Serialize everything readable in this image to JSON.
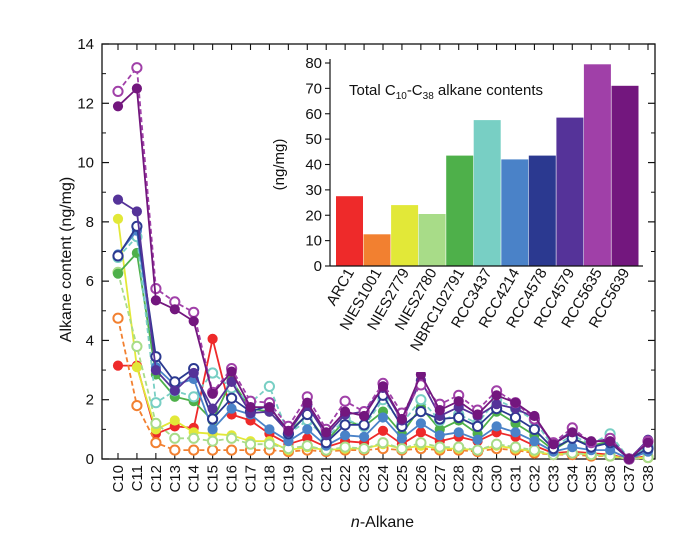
{
  "chart_data": [
    {
      "type": "line",
      "xlabel_italic": "n",
      "xlabel_rest": "-Alkane",
      "ylabel": "Alkane content (ng/mg)",
      "ylim": [
        0,
        14
      ],
      "yticks": [
        0,
        2,
        4,
        6,
        8,
        10,
        12,
        14
      ],
      "x": [
        "C10",
        "C11",
        "C12",
        "C13",
        "C14",
        "C15",
        "C16",
        "C17",
        "C18",
        "C19",
        "C20",
        "C21",
        "C22",
        "C23",
        "C24",
        "C25",
        "C26",
        "C27",
        "C28",
        "C29",
        "C30",
        "C31",
        "C32",
        "C33",
        "C34",
        "C35",
        "C36",
        "C37",
        "C38"
      ],
      "series": [
        {
          "color": "#EE2A2A",
          "marker": "filled",
          "dashed": false,
          "values": [
            3.15,
            3.15,
            0.85,
            1.1,
            1.05,
            4.05,
            1.5,
            1.3,
            0.85,
            0.5,
            0.7,
            0.4,
            0.6,
            0.55,
            0.95,
            0.5,
            0.9,
            0.6,
            0.75,
            0.6,
            0.9,
            0.75,
            0.45,
            0.2,
            0.25,
            0.2,
            0.15,
            0.0,
            0.1
          ]
        },
        {
          "color": "#F28030",
          "marker": "open",
          "dashed": true,
          "values": [
            4.75,
            1.8,
            0.55,
            0.3,
            0.3,
            0.3,
            0.3,
            0.3,
            0.3,
            0.25,
            0.3,
            0.25,
            0.3,
            0.3,
            0.35,
            0.3,
            0.35,
            0.3,
            0.3,
            0.25,
            0.35,
            0.3,
            0.2,
            0.15,
            0.15,
            0.1,
            0.1,
            0.0,
            0.05
          ]
        },
        {
          "color": "#E2E838",
          "marker": "filled",
          "dashed": false,
          "values": [
            8.1,
            3.1,
            1.0,
            1.3,
            0.9,
            0.85,
            0.8,
            0.6,
            0.6,
            0.3,
            0.4,
            0.3,
            0.35,
            0.35,
            0.5,
            0.35,
            0.45,
            0.35,
            0.35,
            0.3,
            0.45,
            0.35,
            0.25,
            0.15,
            0.2,
            0.15,
            0.1,
            0.0,
            0.05
          ]
        },
        {
          "color": "#A8DC88",
          "marker": "open",
          "dashed": true,
          "values": [
            6.3,
            3.8,
            1.2,
            0.7,
            0.7,
            0.6,
            0.7,
            0.5,
            0.5,
            0.35,
            0.45,
            0.3,
            0.4,
            0.35,
            0.55,
            0.35,
            0.55,
            0.4,
            0.4,
            0.3,
            0.5,
            0.4,
            0.3,
            0.15,
            0.2,
            0.15,
            0.1,
            0.0,
            0.05
          ]
        },
        {
          "color": "#4EB04A",
          "marker": "filled",
          "dashed": false,
          "values": [
            6.25,
            6.95,
            2.85,
            2.1,
            1.95,
            1.3,
            2.65,
            1.7,
            1.6,
            0.9,
            1.5,
            0.6,
            1.3,
            1.1,
            1.6,
            0.85,
            1.75,
            1.0,
            1.3,
            0.85,
            1.6,
            1.2,
            0.8,
            0.3,
            0.7,
            0.45,
            0.6,
            0.0,
            0.4
          ]
        },
        {
          "color": "#78CFC4",
          "marker": "open",
          "dashed": true,
          "values": [
            6.8,
            7.5,
            1.9,
            2.3,
            2.1,
            2.9,
            2.4,
            1.9,
            2.45,
            0.85,
            1.3,
            0.7,
            1.35,
            1.1,
            2.0,
            1.2,
            2.0,
            1.3,
            1.5,
            1.2,
            2.0,
            1.7,
            1.3,
            0.4,
            0.8,
            0.5,
            0.85,
            0.0,
            0.45
          ]
        },
        {
          "color": "#4A82C8",
          "marker": "filled",
          "dashed": false,
          "values": [
            6.9,
            7.7,
            3.1,
            2.5,
            2.7,
            1.0,
            1.7,
            1.5,
            1.0,
            0.6,
            1.0,
            0.45,
            0.8,
            0.75,
            1.4,
            0.7,
            1.2,
            0.8,
            0.9,
            0.65,
            1.1,
            0.9,
            0.6,
            0.25,
            0.4,
            0.3,
            0.3,
            0.0,
            0.25
          ]
        },
        {
          "color": "#2B3990",
          "marker": "open",
          "dashed": false,
          "values": [
            6.85,
            7.85,
            3.45,
            2.6,
            3.05,
            1.35,
            2.05,
            1.6,
            1.8,
            0.85,
            1.5,
            0.55,
            1.15,
            1.15,
            2.15,
            1.1,
            1.6,
            1.35,
            1.4,
            1.1,
            1.7,
            1.4,
            1.0,
            0.35,
            0.7,
            0.4,
            0.55,
            0.0,
            0.35
          ]
        },
        {
          "color": "#553399",
          "marker": "filled",
          "dashed": false,
          "values": [
            8.75,
            8.35,
            3.0,
            2.3,
            2.9,
            1.7,
            2.6,
            1.55,
            1.6,
            0.9,
            1.8,
            0.8,
            1.5,
            1.6,
            2.4,
            1.3,
            2.65,
            1.45,
            1.75,
            1.45,
            1.85,
            1.7,
            1.4,
            0.5,
            0.95,
            0.55,
            0.7,
            0.0,
            0.65
          ]
        },
        {
          "color": "#A040A8",
          "marker": "open",
          "dashed": true,
          "values": [
            12.4,
            13.2,
            5.75,
            5.3,
            4.95,
            2.25,
            3.05,
            1.95,
            1.9,
            1.1,
            2.1,
            1.0,
            1.95,
            1.6,
            2.55,
            1.55,
            2.5,
            1.85,
            2.15,
            1.65,
            2.3,
            1.9,
            1.35,
            0.55,
            1.05,
            0.55,
            0.7,
            0.0,
            0.6
          ]
        },
        {
          "color": "#73177E",
          "marker": "filled",
          "dashed": false,
          "values": [
            11.9,
            12.5,
            5.35,
            5.05,
            4.65,
            2.2,
            2.95,
            1.75,
            1.75,
            0.95,
            1.9,
            0.9,
            1.6,
            1.45,
            2.45,
            1.35,
            2.85,
            1.65,
            1.95,
            1.5,
            2.15,
            1.9,
            1.45,
            0.5,
            0.9,
            0.6,
            0.6,
            0.0,
            0.55
          ]
        }
      ]
    },
    {
      "type": "bar",
      "title_prefix": "Total C",
      "title_sub1": "10",
      "title_mid": "-C",
      "title_sub2": "38",
      "title_suffix": " alkane contents",
      "ylabel": "(ng/mg)",
      "ylim": [
        0,
        80
      ],
      "yticks": [
        0,
        10,
        20,
        30,
        40,
        50,
        60,
        70,
        80
      ],
      "categories": [
        "ARC1",
        "NIES1001",
        "NIES2779",
        "NIES2780",
        "NBRC102791",
        "RCC3437",
        "RCC4214",
        "RCC4578",
        "RCC4579",
        "RCC5635",
        "RCC5639"
      ],
      "values": [
        27.5,
        12.5,
        24.0,
        20.5,
        43.5,
        57.5,
        42.0,
        43.5,
        58.5,
        79.5,
        71.0
      ],
      "colors": [
        "#EE2A2A",
        "#F28030",
        "#E2E838",
        "#A8DC88",
        "#4EB04A",
        "#78CFC4",
        "#4A82C8",
        "#2B3990",
        "#553399",
        "#A040A8",
        "#73177E"
      ]
    }
  ]
}
